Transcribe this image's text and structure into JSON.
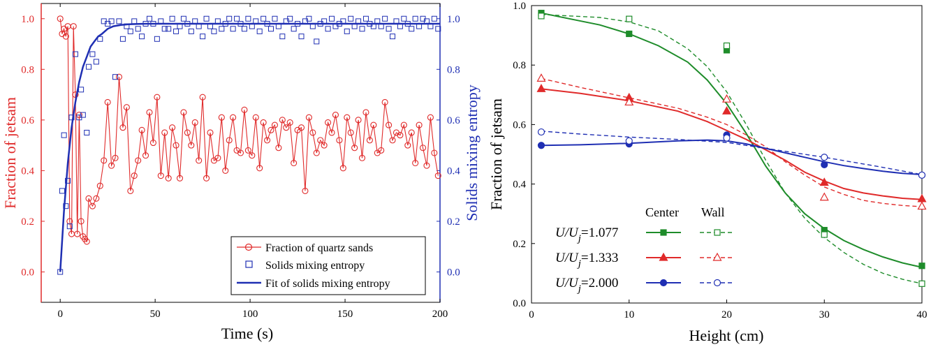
{
  "colors": {
    "red": "#e02a2a",
    "blue": "#1f2fb3",
    "green": "#1e8c2a",
    "axis": "#000000"
  },
  "chart_data": [
    {
      "type": "line",
      "xlabel": "Time (s)",
      "ylabel_left": "Fraction of jetsam",
      "ylabel_right": "Solids mixing entropy",
      "xlim": [
        -10,
        200
      ],
      "ylim_left": [
        -0.12,
        1.06
      ],
      "ylim_right": [
        -0.12,
        1.06
      ],
      "x_ticks": [
        "0",
        "50",
        "100",
        "150",
        "200"
      ],
      "y_ticks_left": [
        "0.0",
        "0.2",
        "0.4",
        "0.6",
        "0.8",
        "1.0"
      ],
      "y_ticks_right": [
        "0.0",
        "0.2",
        "0.4",
        "0.6",
        "0.8",
        "1.0"
      ],
      "legend_position": "bottom-right",
      "legend": [
        "Fraction of quartz sands",
        "Solids mixing entropy",
        "Fit of solids mixing entropy"
      ],
      "series": [
        {
          "name": "Fraction of quartz sands",
          "axis": "left",
          "style": "line-circle",
          "x": [
            0,
            1,
            2,
            3,
            4,
            5,
            6,
            7,
            8,
            9,
            10,
            11,
            12,
            13,
            14,
            15,
            17,
            19,
            21,
            23,
            25,
            27,
            29,
            31,
            33,
            35,
            37,
            39,
            41,
            43,
            45,
            47,
            49,
            51,
            53,
            55,
            57,
            59,
            61,
            63,
            65,
            67,
            69,
            71,
            73,
            75,
            77,
            79,
            81,
            83,
            85,
            87,
            89,
            91,
            93,
            95,
            97,
            99,
            101,
            103,
            105,
            107,
            109,
            111,
            113,
            115,
            117,
            119,
            121,
            123,
            125,
            127,
            129,
            131,
            133,
            135,
            137,
            139,
            141,
            143,
            145,
            147,
            149,
            151,
            153,
            155,
            157,
            159,
            161,
            163,
            165,
            167,
            169,
            171,
            173,
            175,
            177,
            179,
            181,
            183,
            185,
            187,
            189,
            191,
            193,
            195,
            197,
            199
          ],
          "y": [
            1.0,
            0.94,
            0.96,
            0.93,
            0.97,
            0.2,
            0.15,
            0.97,
            0.7,
            0.15,
            0.62,
            0.2,
            0.14,
            0.13,
            0.12,
            0.29,
            0.26,
            0.29,
            0.34,
            0.44,
            0.67,
            0.42,
            0.45,
            0.77,
            0.57,
            0.65,
            0.32,
            0.38,
            0.44,
            0.56,
            0.46,
            0.63,
            0.51,
            0.69,
            0.38,
            0.55,
            0.37,
            0.57,
            0.5,
            0.37,
            0.63,
            0.55,
            0.5,
            0.59,
            0.44,
            0.69,
            0.37,
            0.55,
            0.44,
            0.45,
            0.61,
            0.4,
            0.52,
            0.61,
            0.48,
            0.47,
            0.64,
            0.48,
            0.46,
            0.61,
            0.41,
            0.59,
            0.52,
            0.56,
            0.58,
            0.49,
            0.6,
            0.57,
            0.59,
            0.43,
            0.56,
            0.57,
            0.32,
            0.61,
            0.55,
            0.47,
            0.52,
            0.5,
            0.59,
            0.55,
            0.62,
            0.52,
            0.41,
            0.61,
            0.55,
            0.49,
            0.6,
            0.45,
            0.63,
            0.52,
            0.58,
            0.47,
            0.48,
            0.67,
            0.58,
            0.52,
            0.55,
            0.54,
            0.58,
            0.5,
            0.55,
            0.43,
            0.58,
            0.49,
            0.42,
            0.61,
            0.47,
            0.38
          ]
        },
        {
          "name": "Solids mixing entropy",
          "axis": "right",
          "style": "open-square",
          "x": [
            0,
            1,
            2,
            3,
            4,
            5,
            6,
            8,
            10,
            11,
            12,
            14,
            15,
            17,
            19,
            21,
            23,
            25,
            27,
            29,
            31,
            33,
            35,
            37,
            39,
            41,
            43,
            45,
            47,
            49,
            51,
            53,
            55,
            57,
            59,
            61,
            63,
            65,
            67,
            69,
            71,
            73,
            75,
            77,
            79,
            81,
            83,
            85,
            87,
            89,
            91,
            93,
            95,
            97,
            99,
            101,
            103,
            105,
            107,
            109,
            111,
            113,
            115,
            117,
            119,
            121,
            123,
            125,
            127,
            129,
            131,
            133,
            135,
            137,
            139,
            141,
            143,
            145,
            147,
            149,
            151,
            153,
            155,
            157,
            159,
            161,
            163,
            165,
            167,
            169,
            171,
            173,
            175,
            177,
            179,
            181,
            183,
            185,
            187,
            189,
            191,
            193,
            195,
            197,
            199
          ],
          "y": [
            0.0,
            0.32,
            0.54,
            0.26,
            0.36,
            0.18,
            0.61,
            0.86,
            0.61,
            0.72,
            0.62,
            0.55,
            0.81,
            0.86,
            0.83,
            0.92,
            0.99,
            0.98,
            0.99,
            0.77,
            0.99,
            0.92,
            0.97,
            0.95,
            0.99,
            0.96,
            0.93,
            0.98,
            1.0,
            0.98,
            0.92,
            0.99,
            0.96,
            0.96,
            1.0,
            0.95,
            0.97,
            1.0,
            0.98,
            0.95,
            0.99,
            0.97,
            0.93,
            1.0,
            0.97,
            0.95,
            0.99,
            0.96,
            0.98,
            1.0,
            0.96,
            1.0,
            0.98,
            0.96,
            1.0,
            0.97,
            0.99,
            0.95,
            1.0,
            0.98,
            0.96,
            1.0,
            0.97,
            0.93,
            0.99,
            1.0,
            0.96,
            0.98,
            0.93,
            0.99,
            1.0,
            0.97,
            0.91,
            0.98,
            0.99,
            0.96,
            1.0,
            0.97,
            0.98,
            0.99,
            0.95,
            1.0,
            0.97,
            0.99,
            0.96,
            1.0,
            0.98,
            0.97,
            0.99,
            0.97,
            1.0,
            0.96,
            0.93,
            0.99,
            0.97,
            1.0,
            0.98,
            0.96,
            1.0,
            0.97,
            1.0,
            0.99,
            0.97,
            1.0,
            0.96
          ]
        },
        {
          "name": "Fit of solids mixing entropy",
          "axis": "right",
          "style": "line",
          "x": [
            0,
            2,
            4,
            6,
            8,
            10,
            12,
            14,
            16,
            18,
            20,
            22,
            25,
            28,
            32,
            36,
            40,
            45,
            50,
            60,
            80,
            100,
            120,
            140,
            160,
            180,
            200
          ],
          "y": [
            0.0,
            0.24,
            0.43,
            0.57,
            0.67,
            0.75,
            0.81,
            0.85,
            0.89,
            0.91,
            0.93,
            0.94,
            0.96,
            0.97,
            0.975,
            0.978,
            0.979,
            0.98,
            0.98,
            0.98,
            0.98,
            0.98,
            0.98,
            0.98,
            0.98,
            0.98,
            0.98
          ]
        }
      ]
    },
    {
      "type": "line",
      "xlabel": "Height (cm)",
      "ylabel": "Fraction of  jetsam",
      "xlim": [
        0,
        40
      ],
      "ylim": [
        0,
        1.0
      ],
      "x_ticks": [
        "0",
        "10",
        "20",
        "30",
        "40"
      ],
      "y_ticks": [
        "0.0",
        "0.2",
        "0.4",
        "0.6",
        "0.8",
        "1.0"
      ],
      "legend_headers": [
        "Center",
        "Wall"
      ],
      "legend_rows": [
        {
          "label": "U/U",
          "sub": "j",
          "value": "=1.077",
          "color": "green",
          "marker": "square"
        },
        {
          "label": "U/U",
          "sub": "j",
          "value": "=1.333",
          "color": "red",
          "marker": "triangle"
        },
        {
          "label": "U/U",
          "sub": "j",
          "value": "=2.000",
          "color": "blue",
          "marker": "circle"
        }
      ],
      "series": [
        {
          "group": "1.077",
          "position": "Center",
          "color": "green",
          "marker": "square",
          "filled": true,
          "x": [
            1,
            10,
            20,
            30,
            40
          ],
          "y": [
            0.975,
            0.905,
            0.85,
            0.245,
            0.125
          ],
          "fit_x": [
            1,
            4,
            7,
            10,
            13,
            16,
            18,
            20,
            22,
            24,
            26,
            28,
            30,
            32,
            34,
            36,
            38,
            40
          ],
          "fit_y": [
            0.975,
            0.955,
            0.935,
            0.905,
            0.865,
            0.81,
            0.75,
            0.67,
            0.57,
            0.46,
            0.37,
            0.3,
            0.25,
            0.21,
            0.18,
            0.155,
            0.135,
            0.12
          ]
        },
        {
          "group": "1.077",
          "position": "Wall",
          "color": "green",
          "marker": "square",
          "filled": false,
          "x": [
            1,
            10,
            20,
            30,
            40
          ],
          "y": [
            0.965,
            0.955,
            0.865,
            0.23,
            0.065
          ],
          "fit_x": [
            1,
            4,
            7,
            10,
            13,
            16,
            18,
            20,
            22,
            24,
            26,
            28,
            30,
            32,
            34,
            36,
            38,
            40
          ],
          "fit_y": [
            0.97,
            0.965,
            0.96,
            0.945,
            0.915,
            0.855,
            0.795,
            0.71,
            0.6,
            0.48,
            0.37,
            0.285,
            0.22,
            0.17,
            0.13,
            0.1,
            0.08,
            0.065
          ]
        },
        {
          "group": "1.333",
          "position": "Center",
          "color": "red",
          "marker": "triangle",
          "filled": true,
          "x": [
            1,
            10,
            20,
            30,
            40
          ],
          "y": [
            0.72,
            0.69,
            0.645,
            0.405,
            0.35
          ],
          "fit_x": [
            1,
            5,
            10,
            15,
            18,
            20,
            22,
            24,
            26,
            28,
            30,
            32,
            34,
            36,
            38,
            40
          ],
          "fit_y": [
            0.72,
            0.705,
            0.68,
            0.645,
            0.61,
            0.58,
            0.55,
            0.515,
            0.48,
            0.44,
            0.41,
            0.385,
            0.37,
            0.36,
            0.352,
            0.348
          ]
        },
        {
          "group": "1.333",
          "position": "Wall",
          "color": "red",
          "marker": "triangle",
          "filled": false,
          "x": [
            1,
            10,
            20,
            30,
            40
          ],
          "y": [
            0.755,
            0.675,
            0.685,
            0.355,
            0.325
          ],
          "fit_x": [
            1,
            5,
            10,
            15,
            18,
            20,
            22,
            24,
            26,
            28,
            30,
            32,
            34,
            36,
            38,
            40
          ],
          "fit_y": [
            0.755,
            0.725,
            0.69,
            0.655,
            0.625,
            0.6,
            0.565,
            0.525,
            0.475,
            0.43,
            0.39,
            0.365,
            0.345,
            0.335,
            0.328,
            0.324
          ]
        },
        {
          "group": "2.000",
          "position": "Center",
          "color": "blue",
          "marker": "circle",
          "filled": true,
          "x": [
            1,
            10,
            20,
            30,
            40
          ],
          "y": [
            0.53,
            0.535,
            0.565,
            0.465,
            0.43
          ],
          "fit_x": [
            1,
            5,
            10,
            15,
            18,
            20,
            22,
            24,
            26,
            28,
            30,
            32,
            34,
            36,
            38,
            40
          ],
          "fit_y": [
            0.53,
            0.532,
            0.537,
            0.545,
            0.548,
            0.545,
            0.535,
            0.52,
            0.505,
            0.49,
            0.475,
            0.462,
            0.452,
            0.443,
            0.436,
            0.432
          ]
        },
        {
          "group": "2.000",
          "position": "Wall",
          "color": "blue",
          "marker": "circle",
          "filled": false,
          "x": [
            1,
            10,
            20,
            30,
            40
          ],
          "y": [
            0.575,
            0.545,
            0.555,
            0.49,
            0.43
          ],
          "fit_x": [
            1,
            5,
            10,
            15,
            20,
            25,
            30,
            35,
            40
          ],
          "fit_y": [
            0.578,
            0.568,
            0.558,
            0.55,
            0.54,
            0.515,
            0.49,
            0.462,
            0.432
          ]
        }
      ]
    }
  ]
}
